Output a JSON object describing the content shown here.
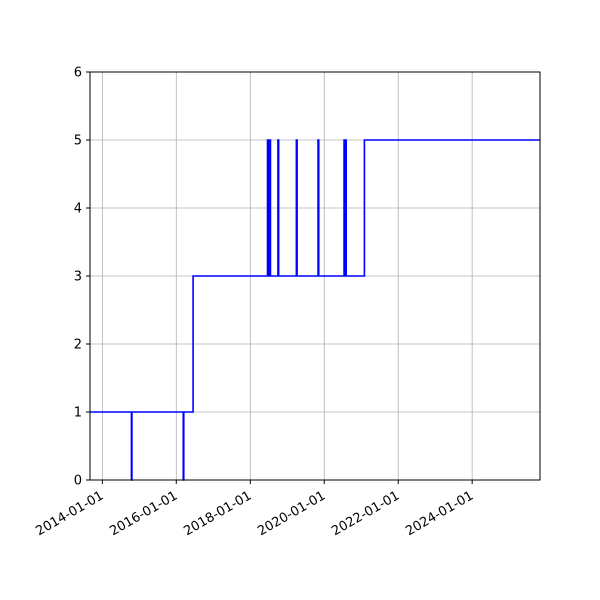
{
  "chart_data": {
    "type": "line",
    "title": "",
    "xlabel": "",
    "ylabel": "",
    "x_axis_type": "date",
    "xlim": [
      "2013-09-01",
      "2025-11-01"
    ],
    "ylim": [
      0,
      6
    ],
    "grid": true,
    "x_tick_labels": [
      "2014-01-01",
      "2016-01-01",
      "2018-01-01",
      "2020-01-01",
      "2022-01-01",
      "2024-01-01"
    ],
    "y_tick_labels": [
      "0",
      "1",
      "2",
      "3",
      "4",
      "5",
      "6"
    ],
    "colors": {
      "line": "#0000ff",
      "grid": "#b0b0b0",
      "axes": "#000000",
      "background": "#ffffff"
    },
    "series": [
      {
        "step": "post",
        "points": [
          [
            "2013-09-01",
            1
          ],
          [
            "2014-10-15",
            0
          ],
          [
            "2014-10-20",
            1
          ],
          [
            "2016-03-10",
            0
          ],
          [
            "2016-03-15",
            1
          ],
          [
            "2016-06-15",
            3
          ],
          [
            "2018-06-20",
            5
          ],
          [
            "2018-06-27",
            3
          ],
          [
            "2018-07-01",
            5
          ],
          [
            "2018-07-08",
            3
          ],
          [
            "2018-07-12",
            5
          ],
          [
            "2018-07-19",
            3
          ],
          [
            "2018-10-01",
            5
          ],
          [
            "2018-10-08",
            3
          ],
          [
            "2019-04-01",
            5
          ],
          [
            "2019-04-08",
            3
          ],
          [
            "2019-11-01",
            5
          ],
          [
            "2019-11-08",
            3
          ],
          [
            "2020-07-15",
            5
          ],
          [
            "2020-07-22",
            3
          ],
          [
            "2020-07-29",
            5
          ],
          [
            "2020-08-05",
            3
          ],
          [
            "2021-02-01",
            5
          ],
          [
            "2025-11-01",
            5
          ]
        ]
      }
    ]
  }
}
